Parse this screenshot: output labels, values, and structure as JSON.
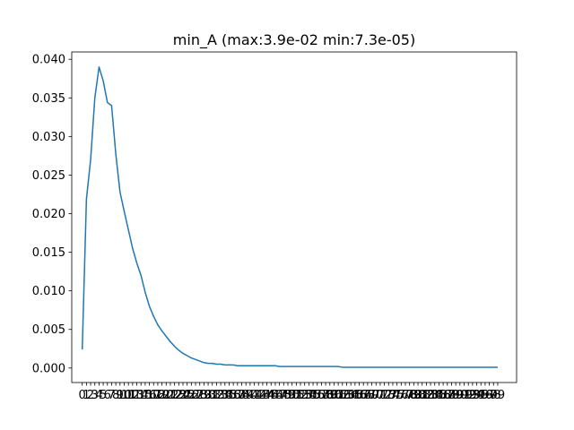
{
  "chart_data": {
    "type": "line",
    "title": "min_A (max:3.9e-02 min:7.3e-05)",
    "xlabel": "",
    "ylabel": "",
    "x": [
      0,
      1,
      2,
      3,
      4,
      5,
      6,
      7,
      8,
      9,
      10,
      11,
      12,
      13,
      14,
      15,
      16,
      17,
      18,
      19,
      20,
      21,
      22,
      23,
      24,
      25,
      26,
      27,
      28,
      29,
      30,
      31,
      32,
      33,
      34,
      35,
      36,
      37,
      38,
      39,
      40,
      41,
      42,
      43,
      44,
      45,
      46,
      47,
      48,
      49,
      50,
      51,
      52,
      53,
      54,
      55,
      56,
      57,
      58,
      59,
      60,
      61,
      62,
      63,
      64,
      65,
      66,
      67,
      68,
      69,
      70,
      71,
      72,
      73,
      74,
      75,
      76,
      77,
      78,
      79,
      80,
      81,
      82,
      83,
      84,
      85,
      86,
      87,
      88,
      89,
      90,
      91,
      92,
      93,
      94,
      95,
      96,
      97,
      98,
      99
    ],
    "series": [
      {
        "values": [
          0.0024,
          0.0219,
          0.027,
          0.035,
          0.039,
          0.0372,
          0.0344,
          0.034,
          0.0277,
          0.0228,
          0.0203,
          0.0179,
          0.0155,
          0.0136,
          0.012,
          0.0098,
          0.008,
          0.0067,
          0.0056,
          0.0048,
          0.0041,
          0.0034,
          0.0028,
          0.0023,
          0.0019,
          0.0016,
          0.0013,
          0.0011,
          0.0009,
          0.0007,
          0.0006,
          0.0006,
          0.0005,
          0.0005,
          0.0004,
          0.0004,
          0.0004,
          0.0003,
          0.0003,
          0.0003,
          0.0003,
          0.0003,
          0.0003,
          0.0003,
          0.0003,
          0.0003,
          0.0003,
          0.0002,
          0.0002,
          0.0002,
          0.0002,
          0.0002,
          0.0002,
          0.0002,
          0.0002,
          0.0002,
          0.0002,
          0.0002,
          0.0002,
          0.0002,
          0.0002,
          0.0002,
          0.0001,
          0.0001,
          0.0001,
          0.0001,
          0.0001,
          0.0001,
          0.0001,
          0.0001,
          0.0001,
          0.0001,
          0.0001,
          0.0001,
          0.0001,
          0.0001,
          0.0001,
          0.0001,
          0.0001,
          0.0001,
          0.0001,
          0.0001,
          0.0001,
          0.0001,
          0.0001,
          0.0001,
          0.0001,
          0.0001,
          0.0001,
          0.0001,
          0.0001,
          0.0001,
          0.0001,
          0.0001,
          0.0001,
          0.0001,
          0.0001,
          0.0001,
          0.0001,
          0.0001
        ]
      }
    ],
    "xlim": [
      -2.5,
      103.5
    ],
    "ylim": [
      -0.00188,
      0.04095
    ],
    "yticks": [
      "0.000",
      "0.005",
      "0.010",
      "0.015",
      "0.020",
      "0.025",
      "0.030",
      "0.035",
      "0.040"
    ],
    "ytick_values": [
      0,
      0.005,
      0.01,
      0.015,
      0.02,
      0.025,
      0.03,
      0.035,
      0.04
    ],
    "xticks": [
      "0",
      "1",
      "2",
      "3",
      "4",
      "5",
      "6",
      "7",
      "8",
      "9",
      "10",
      "11",
      "12",
      "13",
      "14",
      "15",
      "16",
      "17",
      "18",
      "19",
      "20",
      "21",
      "22",
      "23",
      "24",
      "25",
      "26",
      "27",
      "28",
      "29",
      "30",
      "31",
      "32",
      "33",
      "34",
      "35",
      "36",
      "37",
      "38",
      "39",
      "40",
      "41",
      "42",
      "43",
      "44",
      "45",
      "46",
      "47",
      "48",
      "49",
      "50",
      "51",
      "52",
      "53",
      "54",
      "55",
      "56",
      "57",
      "58",
      "59",
      "60",
      "61",
      "62",
      "63",
      "64",
      "65",
      "66",
      "67",
      "68",
      "69",
      "70",
      "71",
      "72",
      "73",
      "74",
      "75",
      "76",
      "77",
      "78",
      "79",
      "80",
      "81",
      "82",
      "83",
      "84",
      "85",
      "86",
      "87",
      "88",
      "89",
      "90",
      "91",
      "92",
      "93",
      "94",
      "95",
      "96",
      "97",
      "98",
      "99"
    ],
    "grid": false,
    "legend": "none",
    "line_color": "#1f77b4"
  }
}
